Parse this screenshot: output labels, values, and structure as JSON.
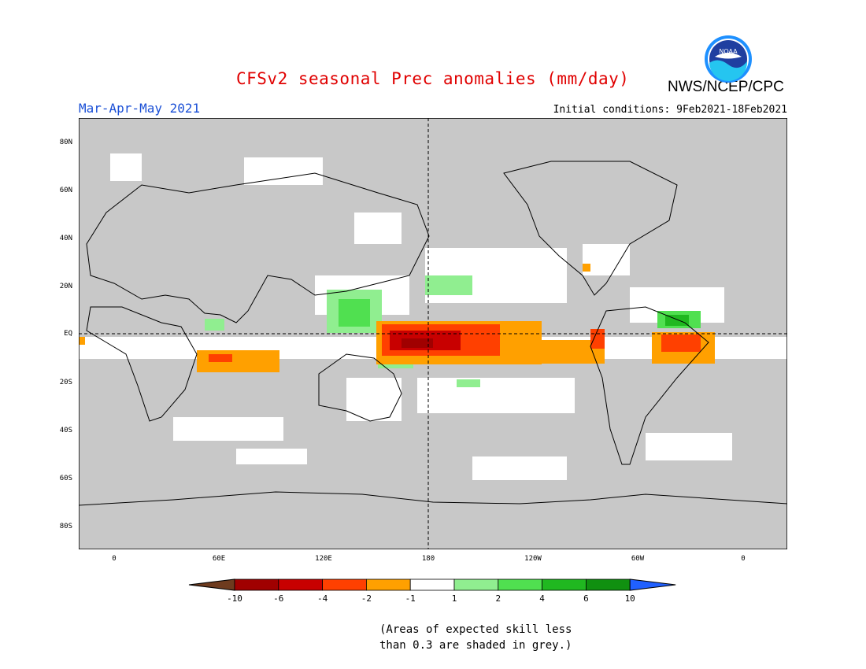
{
  "header": {
    "title": "CFSv2 seasonal Prec anomalies (mm/day)",
    "agency": "NWS/NCEP/CPC",
    "season": "Mar-Apr-May 2021",
    "initial_conditions": "Initial conditions: 9Feb2021-18Feb2021",
    "logo_text": "NOAA"
  },
  "map": {
    "projection": "cylindrical equidistant",
    "lat_labels": [
      "80N",
      "60N",
      "40N",
      "20N",
      "EQ",
      "20S",
      "40S",
      "60S",
      "80S"
    ],
    "lon_labels": [
      "0",
      "60E",
      "120E",
      "180",
      "120W",
      "60W",
      "0"
    ],
    "background_color": "#c8c8c8",
    "dashed_reference_lines": [
      "EQ",
      "180"
    ]
  },
  "legend": {
    "tick_labels": [
      "-10",
      "-6",
      "-4",
      "-2",
      "-1",
      "1",
      "2",
      "4",
      "6",
      "10"
    ],
    "colors": [
      "#6e3b1e",
      "#a00000",
      "#c80000",
      "#ff4000",
      "#ffa000",
      "#ffffff",
      "#90ee90",
      "#50e050",
      "#20b820",
      "#109010",
      "#2060ff"
    ]
  },
  "footnote": {
    "line1": "(Areas of expected skill less",
    "line2": "than 0.3 are shaded in grey.)"
  }
}
